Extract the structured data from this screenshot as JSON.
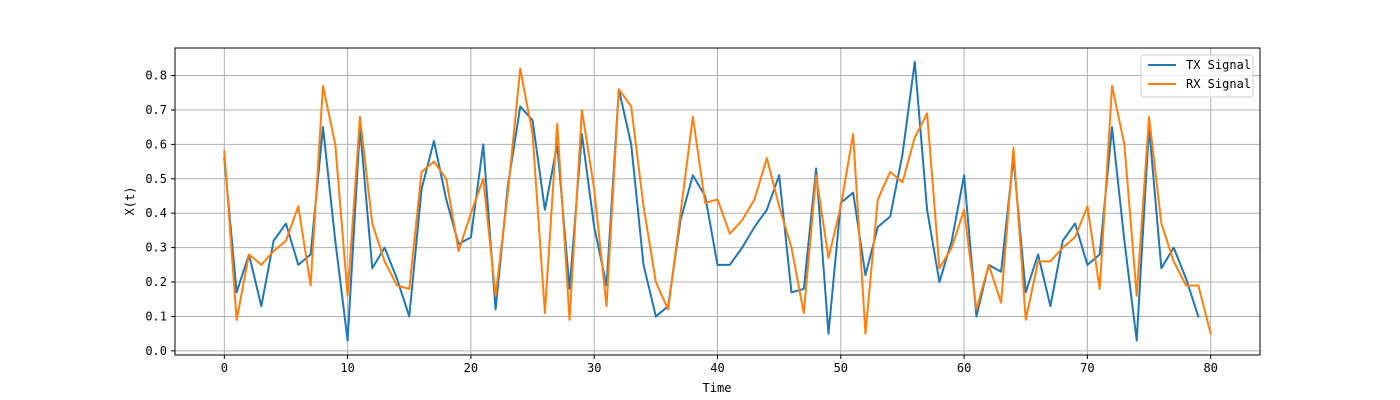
{
  "chart_data": {
    "type": "line",
    "xlabel": "Time",
    "ylabel": "X(t)",
    "xlim": [
      -4,
      84
    ],
    "ylim": [
      -0.012,
      0.88
    ],
    "xticks": [
      0,
      10,
      20,
      30,
      40,
      50,
      60,
      70,
      80
    ],
    "yticks": [
      0.0,
      0.1,
      0.2,
      0.3,
      0.4,
      0.5,
      0.6,
      0.7,
      0.8
    ],
    "grid": true,
    "legend_position": "top-right",
    "series": [
      {
        "name": "TX Signal",
        "color": "#1f77b4",
        "x": [
          0,
          1,
          2,
          3,
          4,
          5,
          6,
          7,
          8,
          9,
          10,
          11,
          12,
          13,
          14,
          15,
          16,
          17,
          18,
          19,
          20,
          21,
          22,
          23,
          24,
          25,
          26,
          27,
          28,
          29,
          30,
          31,
          32,
          33,
          34,
          35,
          36,
          37,
          38,
          39,
          40,
          41,
          42,
          43,
          44,
          45,
          46,
          47,
          48,
          49,
          50,
          51,
          52,
          53,
          54,
          55,
          56,
          57,
          58,
          59,
          60,
          61,
          62,
          63,
          64,
          65,
          66,
          67,
          68,
          69,
          70,
          71,
          72,
          73,
          74,
          75,
          76,
          77,
          78,
          79
        ],
        "values": [
          0.56,
          0.17,
          0.28,
          0.13,
          0.32,
          0.37,
          0.25,
          0.28,
          0.65,
          0.32,
          0.03,
          0.65,
          0.24,
          0.3,
          0.21,
          0.1,
          0.47,
          0.61,
          0.44,
          0.31,
          0.33,
          0.6,
          0.12,
          0.48,
          0.71,
          0.67,
          0.41,
          0.6,
          0.18,
          0.63,
          0.36,
          0.19,
          0.76,
          0.6,
          0.25,
          0.1,
          0.13,
          0.38,
          0.51,
          0.45,
          0.25,
          0.25,
          0.3,
          0.36,
          0.41,
          0.51,
          0.17,
          0.18,
          0.53,
          0.05,
          0.43,
          0.46,
          0.22,
          0.36,
          0.39,
          0.57,
          0.84,
          0.41,
          0.2,
          0.32,
          0.51,
          0.1,
          0.25,
          0.23,
          0.56,
          0.17,
          0.28,
          0.13,
          0.32,
          0.37,
          0.25,
          0.28,
          0.65,
          0.32,
          0.03,
          0.65,
          0.24,
          0.3,
          0.21,
          0.1
        ]
      },
      {
        "name": "RX Signal",
        "color": "#ff7f0e",
        "x": [
          0,
          1,
          2,
          3,
          4,
          5,
          6,
          7,
          8,
          9,
          10,
          11,
          12,
          13,
          14,
          15,
          16,
          17,
          18,
          19,
          20,
          21,
          22,
          23,
          24,
          25,
          26,
          27,
          28,
          29,
          30,
          31,
          32,
          33,
          34,
          35,
          36,
          37,
          38,
          39,
          40,
          41,
          42,
          43,
          44,
          45,
          46,
          47,
          48,
          49,
          50,
          51,
          52,
          53,
          54,
          55,
          56,
          57,
          58,
          59,
          60,
          61,
          62,
          63,
          64,
          65,
          66,
          67,
          68,
          69,
          70,
          71,
          72,
          73,
          74,
          75,
          76,
          77,
          78,
          79,
          80
        ],
        "values": [
          0.58,
          0.09,
          0.28,
          0.25,
          0.29,
          0.32,
          0.42,
          0.19,
          0.77,
          0.6,
          0.16,
          0.68,
          0.37,
          0.26,
          0.19,
          0.18,
          0.52,
          0.55,
          0.5,
          0.29,
          0.4,
          0.5,
          0.16,
          0.46,
          0.82,
          0.63,
          0.11,
          0.66,
          0.09,
          0.7,
          0.47,
          0.13,
          0.76,
          0.71,
          0.42,
          0.2,
          0.12,
          0.4,
          0.68,
          0.43,
          0.44,
          0.34,
          0.38,
          0.44,
          0.56,
          0.42,
          0.3,
          0.11,
          0.51,
          0.27,
          0.42,
          0.63,
          0.05,
          0.44,
          0.52,
          0.49,
          0.62,
          0.69,
          0.24,
          0.3,
          0.41,
          0.12,
          0.25,
          0.14,
          0.59,
          0.09,
          0.26,
          0.26,
          0.3,
          0.33,
          0.42,
          0.18,
          0.77,
          0.6,
          0.16,
          0.68,
          0.37,
          0.26,
          0.19,
          0.19,
          0.05
        ]
      }
    ]
  }
}
